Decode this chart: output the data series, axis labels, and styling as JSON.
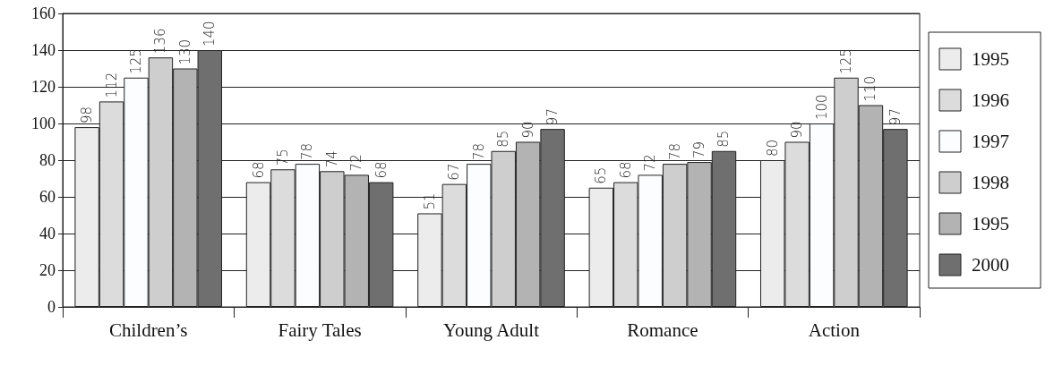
{
  "chart_data": {
    "type": "bar",
    "categories": [
      "Children’s",
      "Fairy Tales",
      "Young Adult",
      "Romance",
      "Action"
    ],
    "series": [
      {
        "name": "1995",
        "color": "#ececec",
        "values": [
          98,
          68,
          51,
          65,
          80
        ]
      },
      {
        "name": "1996",
        "color": "#dcdcdc",
        "values": [
          112,
          75,
          67,
          68,
          90
        ]
      },
      {
        "name": "1997",
        "color": "#fbfdff",
        "values": [
          125,
          78,
          78,
          72,
          100
        ]
      },
      {
        "name": "1998",
        "color": "#cecece",
        "values": [
          136,
          74,
          85,
          78,
          125
        ]
      },
      {
        "name": "1995",
        "color": "#b3b3b3",
        "values": [
          130,
          72,
          90,
          79,
          110
        ]
      },
      {
        "name": "2000",
        "color": "#6f6f6f",
        "values": [
          140,
          68,
          97,
          85,
          97
        ]
      }
    ],
    "ylim": [
      0,
      160
    ],
    "yticks": [
      0,
      20,
      40,
      60,
      80,
      100,
      120,
      140,
      160
    ],
    "grid": "y",
    "legend": "right",
    "data_labels": true
  }
}
